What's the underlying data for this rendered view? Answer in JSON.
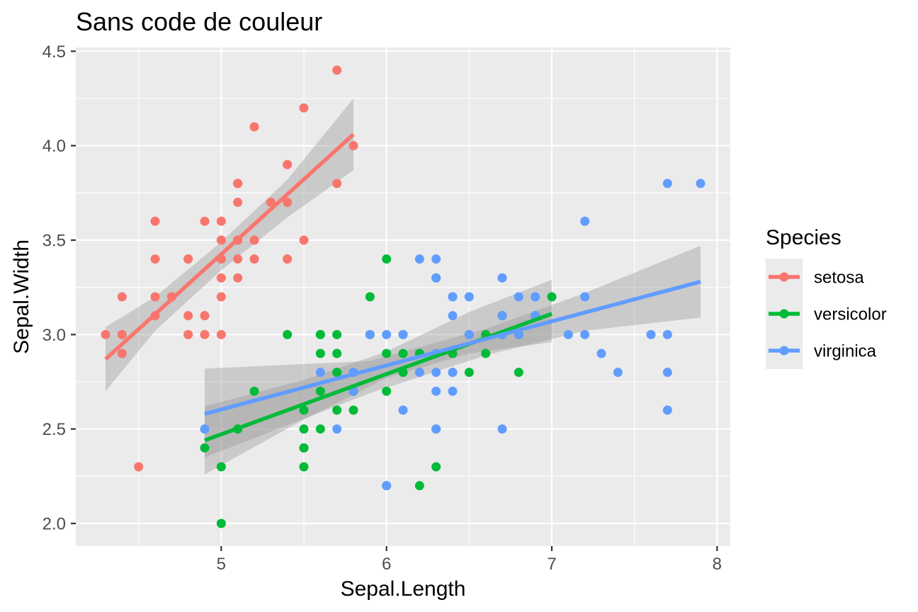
{
  "chart_data": {
    "type": "scatter",
    "title": "Sans code de couleur",
    "xlabel": "Sepal.Length",
    "ylabel": "Sepal.Width",
    "xlim": [
      4.12,
      8.08
    ],
    "ylim": [
      1.88,
      4.52
    ],
    "x_ticks": [
      5,
      6,
      7,
      8
    ],
    "x_tick_labels": [
      "5",
      "6",
      "7",
      "8"
    ],
    "y_ticks": [
      2.0,
      2.5,
      3.0,
      3.5,
      4.0,
      4.5
    ],
    "y_tick_labels": [
      "2.0",
      "2.5",
      "3.0",
      "3.5",
      "4.0",
      "4.5"
    ],
    "grid": true,
    "legend": {
      "title": "Species",
      "position": "right"
    },
    "series": [
      {
        "name": "setosa",
        "color": "#F8766D",
        "points": [
          [
            5.1,
            3.5
          ],
          [
            4.9,
            3.0
          ],
          [
            4.7,
            3.2
          ],
          [
            4.6,
            3.1
          ],
          [
            5.0,
            3.6
          ],
          [
            5.4,
            3.9
          ],
          [
            4.6,
            3.4
          ],
          [
            5.0,
            3.4
          ],
          [
            4.4,
            2.9
          ],
          [
            4.9,
            3.1
          ],
          [
            5.4,
            3.7
          ],
          [
            4.8,
            3.4
          ],
          [
            4.8,
            3.0
          ],
          [
            4.3,
            3.0
          ],
          [
            5.8,
            4.0
          ],
          [
            5.7,
            4.4
          ],
          [
            5.4,
            3.9
          ],
          [
            5.1,
            3.5
          ],
          [
            5.7,
            3.8
          ],
          [
            5.1,
            3.8
          ],
          [
            5.4,
            3.4
          ],
          [
            5.1,
            3.7
          ],
          [
            4.6,
            3.6
          ],
          [
            5.1,
            3.3
          ],
          [
            4.8,
            3.4
          ],
          [
            5.0,
            3.0
          ],
          [
            5.0,
            3.4
          ],
          [
            5.2,
            3.5
          ],
          [
            5.2,
            3.4
          ],
          [
            4.7,
            3.2
          ],
          [
            4.8,
            3.1
          ],
          [
            5.4,
            3.4
          ],
          [
            5.2,
            4.1
          ],
          [
            5.5,
            4.2
          ],
          [
            4.9,
            3.1
          ],
          [
            5.0,
            3.2
          ],
          [
            5.5,
            3.5
          ],
          [
            4.9,
            3.6
          ],
          [
            4.4,
            3.0
          ],
          [
            5.1,
            3.4
          ],
          [
            5.0,
            3.5
          ],
          [
            4.5,
            2.3
          ],
          [
            4.4,
            3.2
          ],
          [
            5.0,
            3.5
          ],
          [
            5.1,
            3.8
          ],
          [
            4.8,
            3.0
          ],
          [
            5.1,
            3.8
          ],
          [
            4.6,
            3.2
          ],
          [
            5.3,
            3.7
          ],
          [
            5.0,
            3.3
          ]
        ],
        "fit": {
          "x": [
            4.3,
            5.8
          ],
          "y": [
            2.87,
            4.06
          ]
        }
      },
      {
        "name": "versicolor",
        "color": "#00BA38",
        "points": [
          [
            7.0,
            3.2
          ],
          [
            6.4,
            3.2
          ],
          [
            6.9,
            3.1
          ],
          [
            5.5,
            2.3
          ],
          [
            6.5,
            2.8
          ],
          [
            5.7,
            2.8
          ],
          [
            6.3,
            3.3
          ],
          [
            4.9,
            2.4
          ],
          [
            6.6,
            2.9
          ],
          [
            5.2,
            2.7
          ],
          [
            5.0,
            2.0
          ],
          [
            5.9,
            3.0
          ],
          [
            6.0,
            2.2
          ],
          [
            6.1,
            2.9
          ],
          [
            5.6,
            2.9
          ],
          [
            6.7,
            3.1
          ],
          [
            5.6,
            3.0
          ],
          [
            5.8,
            2.7
          ],
          [
            6.2,
            2.2
          ],
          [
            5.6,
            2.5
          ],
          [
            5.9,
            3.2
          ],
          [
            6.1,
            2.8
          ],
          [
            6.3,
            2.5
          ],
          [
            6.1,
            2.8
          ],
          [
            6.4,
            2.9
          ],
          [
            6.6,
            3.0
          ],
          [
            6.8,
            2.8
          ],
          [
            6.7,
            3.0
          ],
          [
            6.0,
            2.9
          ],
          [
            5.7,
            2.6
          ],
          [
            5.5,
            2.4
          ],
          [
            5.5,
            2.4
          ],
          [
            5.8,
            2.7
          ],
          [
            6.0,
            2.7
          ],
          [
            5.4,
            3.0
          ],
          [
            6.0,
            3.4
          ],
          [
            6.7,
            3.1
          ],
          [
            6.3,
            2.3
          ],
          [
            5.6,
            3.0
          ],
          [
            5.5,
            2.5
          ],
          [
            5.5,
            2.6
          ],
          [
            6.1,
            3.0
          ],
          [
            5.8,
            2.6
          ],
          [
            5.0,
            2.3
          ],
          [
            5.6,
            2.7
          ],
          [
            5.7,
            3.0
          ],
          [
            5.7,
            2.9
          ],
          [
            6.2,
            2.9
          ],
          [
            5.1,
            2.5
          ],
          [
            5.7,
            2.8
          ]
        ],
        "fit": {
          "x": [
            4.9,
            7.0
          ],
          "y": [
            2.44,
            3.11
          ]
        }
      },
      {
        "name": "virginica",
        "color": "#619CFF",
        "points": [
          [
            6.3,
            3.3
          ],
          [
            5.8,
            2.7
          ],
          [
            7.1,
            3.0
          ],
          [
            6.3,
            2.9
          ],
          [
            6.5,
            3.0
          ],
          [
            7.6,
            3.0
          ],
          [
            4.9,
            2.5
          ],
          [
            7.3,
            2.9
          ],
          [
            6.7,
            2.5
          ],
          [
            7.2,
            3.6
          ],
          [
            6.5,
            3.2
          ],
          [
            6.4,
            2.7
          ],
          [
            6.8,
            3.0
          ],
          [
            5.7,
            2.5
          ],
          [
            5.8,
            2.8
          ],
          [
            6.4,
            3.2
          ],
          [
            6.5,
            3.0
          ],
          [
            7.7,
            3.8
          ],
          [
            7.7,
            2.6
          ],
          [
            6.0,
            2.2
          ],
          [
            6.9,
            3.2
          ],
          [
            5.6,
            2.8
          ],
          [
            7.7,
            2.8
          ],
          [
            6.3,
            2.7
          ],
          [
            6.7,
            3.3
          ],
          [
            7.2,
            3.2
          ],
          [
            6.2,
            2.8
          ],
          [
            6.1,
            3.0
          ],
          [
            6.4,
            2.8
          ],
          [
            7.2,
            3.0
          ],
          [
            7.4,
            2.8
          ],
          [
            7.9,
            3.8
          ],
          [
            6.4,
            2.8
          ],
          [
            6.3,
            2.8
          ],
          [
            6.1,
            2.6
          ],
          [
            7.7,
            3.0
          ],
          [
            6.3,
            3.4
          ],
          [
            6.4,
            3.1
          ],
          [
            6.0,
            3.0
          ],
          [
            6.9,
            3.1
          ],
          [
            6.7,
            3.1
          ],
          [
            6.9,
            3.1
          ],
          [
            5.8,
            2.7
          ],
          [
            6.8,
            3.2
          ],
          [
            6.7,
            3.3
          ],
          [
            6.7,
            3.0
          ],
          [
            6.3,
            2.5
          ],
          [
            6.5,
            3.0
          ],
          [
            6.2,
            3.4
          ],
          [
            5.9,
            3.0
          ]
        ],
        "fit": {
          "x": [
            4.9,
            7.9
          ],
          "y": [
            2.58,
            3.28
          ]
        }
      }
    ],
    "confidence_band": {
      "color": "#999999",
      "opacity": 0.4,
      "bands": [
        {
          "series": "setosa",
          "x": [
            4.3,
            4.6,
            5.0,
            5.4,
            5.8
          ],
          "lower": [
            2.7,
            3.02,
            3.34,
            3.62,
            3.87
          ],
          "upper": [
            3.04,
            3.2,
            3.49,
            3.82,
            4.25
          ]
        },
        {
          "series": "versicolor",
          "x": [
            4.9,
            5.5,
            6.0,
            6.5,
            7.0
          ],
          "lower": [
            2.26,
            2.55,
            2.77,
            2.9,
            2.96
          ],
          "upper": [
            2.62,
            2.76,
            2.91,
            3.12,
            3.29
          ]
        },
        {
          "series": "virginica",
          "x": [
            4.9,
            5.9,
            6.6,
            7.2,
            7.9
          ],
          "lower": [
            2.35,
            2.69,
            2.89,
            3.02,
            3.09
          ],
          "upper": [
            2.82,
            2.86,
            3.03,
            3.22,
            3.47
          ]
        }
      ]
    }
  }
}
